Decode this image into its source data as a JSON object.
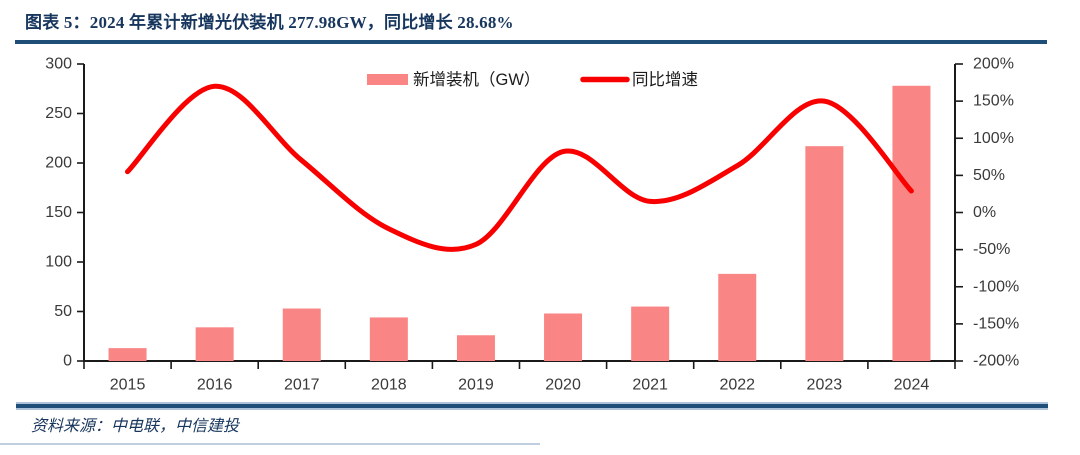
{
  "figure": {
    "title": "图表 5：2024 年累计新增光伏装机 277.98GW，同比增长 28.68%",
    "source_note": "资料来源：中电联，中信建投"
  },
  "colors": {
    "bar": "#FA8585",
    "line": "#F80000",
    "title_text": "#17365D",
    "rule_dark": "#1F4E79",
    "rule_light": "#AEC3D9",
    "axis_text": "#3A3A3A",
    "axis_line": "#1A1A1A",
    "page_divider": "#BFCFE0"
  },
  "chart_data": {
    "type": "combo-bar-line",
    "categories": [
      "2015",
      "2016",
      "2017",
      "2018",
      "2019",
      "2020",
      "2021",
      "2022",
      "2023",
      "2024"
    ],
    "series": [
      {
        "name": "新增装机（GW）",
        "type": "bar",
        "axis": "left",
        "values": [
          13,
          34,
          53,
          44,
          26,
          48,
          55,
          88,
          217,
          278
        ]
      },
      {
        "name": "同比增速",
        "type": "line",
        "axis": "right",
        "smoothed": true,
        "values_percent": [
          55,
          170,
          70,
          -22,
          -43,
          82,
          15,
          63,
          150,
          29
        ]
      }
    ],
    "left_axis": {
      "min": 0,
      "max": 300,
      "ticks": [
        0,
        50,
        100,
        150,
        200,
        250,
        300
      ]
    },
    "right_axis": {
      "min_percent": -200,
      "max_percent": 200,
      "tick_labels": [
        "200%",
        "150%",
        "100%",
        "50%",
        "0%",
        "-50%",
        "-100%",
        "-150%",
        "-200%"
      ]
    },
    "grid": false,
    "legend_position": "top-center"
  }
}
